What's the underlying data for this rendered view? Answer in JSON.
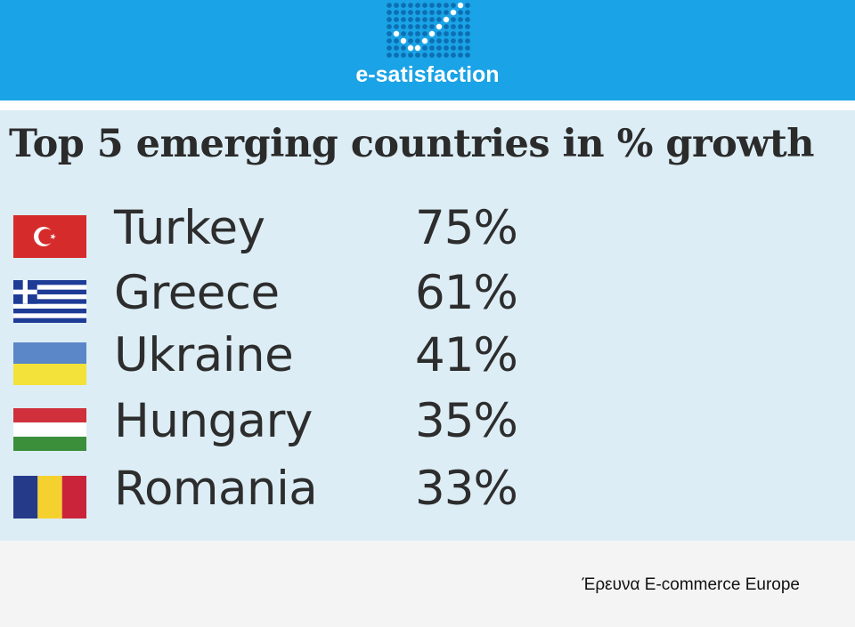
{
  "header": {
    "logo_text": "e-satisfaction",
    "logo_icon": "dotted-checkmark-icon",
    "brand_color": "#1aa3e6"
  },
  "panel": {
    "title": "Top 5 emerging countries in % growth",
    "background_color": "#dcedf5",
    "rows": [
      {
        "country": "Turkey",
        "value": "75%",
        "flag": "turkey-flag-icon"
      },
      {
        "country": "Greece",
        "value": "61%",
        "flag": "greece-flag-icon"
      },
      {
        "country": "Ukraine",
        "value": "41%",
        "flag": "ukraine-flag-icon"
      },
      {
        "country": "Hungary",
        "value": "35%",
        "flag": "hungary-flag-icon"
      },
      {
        "country": "Romania",
        "value": "33%",
        "flag": "romania-flag-icon"
      }
    ]
  },
  "footer": {
    "caption": "Έρευνα E-commerce Europe"
  }
}
